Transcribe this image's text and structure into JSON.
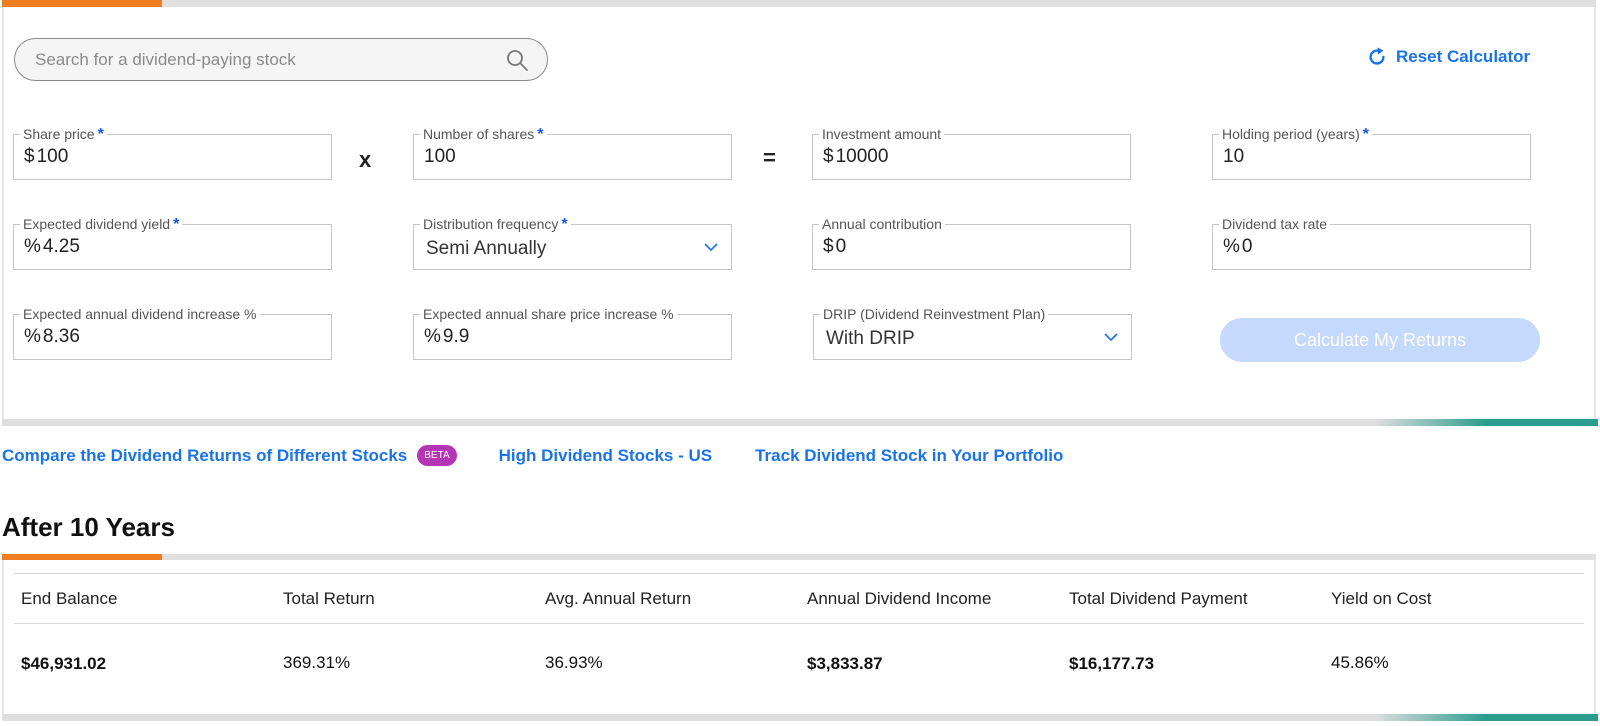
{
  "search": {
    "placeholder": "Search for a dividend-paying stock"
  },
  "reset": {
    "label": "Reset Calculator"
  },
  "fields": {
    "share_price": {
      "label": "Share price",
      "unit": "$",
      "value": "100",
      "required": "*"
    },
    "number_of_shares": {
      "label": "Number of shares",
      "unit": "",
      "value": "100",
      "required": "*"
    },
    "investment_amount": {
      "label": "Investment amount",
      "unit": "$",
      "value": "10000"
    },
    "holding_period": {
      "label": "Holding period (years)",
      "unit": "",
      "value": "10",
      "required": "*"
    },
    "dividend_yield": {
      "label": "Expected dividend yield",
      "unit": "%",
      "value": "4.25",
      "required": "*"
    },
    "distribution_frequency": {
      "label": "Distribution frequency",
      "value": "Semi Annually",
      "required": "*"
    },
    "annual_contribution": {
      "label": "Annual contribution",
      "unit": "$",
      "value": "0"
    },
    "dividend_tax_rate": {
      "label": "Dividend tax rate",
      "unit": "%",
      "value": "0"
    },
    "dividend_increase": {
      "label": "Expected annual dividend increase %",
      "unit": "%",
      "value": "8.36"
    },
    "share_price_increase": {
      "label": "Expected annual share price increase %",
      "unit": "%",
      "value": "9.9"
    },
    "drip": {
      "label": "DRIP (Dividend Reinvestment Plan)",
      "value": "With DRIP"
    }
  },
  "operators": {
    "times": "x",
    "equals": "="
  },
  "calculate": {
    "label": "Calculate My Returns"
  },
  "links": {
    "compare": "Compare the Dividend Returns of Different Stocks",
    "beta": "BETA",
    "high_dividend": "High Dividend Stocks - US",
    "track": "Track Dividend Stock in Your Portfolio"
  },
  "results": {
    "title": "After 10 Years",
    "headers": [
      "End Balance",
      "Total Return",
      "Avg. Annual Return",
      "Annual Dividend Income",
      "Total Dividend Payment",
      "Yield on Cost"
    ],
    "values": [
      "$46,931.02",
      "369.31%",
      "36.93%",
      "$3,833.87",
      "$16,177.73",
      "45.86%"
    ]
  },
  "colors": {
    "accent": "#1a73e8",
    "orange": "#ef7d22",
    "teal": "#2a9d8f",
    "beta": "#b536b5",
    "button_disabled": "#c4d9fb"
  }
}
